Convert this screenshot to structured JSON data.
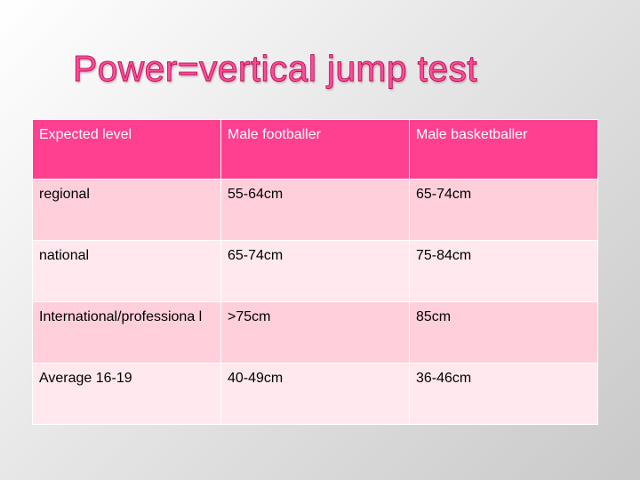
{
  "title": "Power=vertical jump test",
  "table": {
    "headers": [
      "Expected level",
      "Male footballer",
      "Male basketballer"
    ],
    "rows": [
      [
        "regional",
        "55-64cm",
        "65-74cm"
      ],
      [
        "national",
        "65-74cm",
        "75-84cm"
      ],
      [
        "International/professiona l",
        ">75cm",
        "85cm"
      ],
      [
        "Average 16-19",
        "40-49cm",
        "36-46cm"
      ]
    ]
  },
  "colors": {
    "title": "#ff4d96",
    "header_background": "#ff3f8f",
    "row_odd_background": "#ffd0dc",
    "row_even_background": "#ffe8ee"
  }
}
